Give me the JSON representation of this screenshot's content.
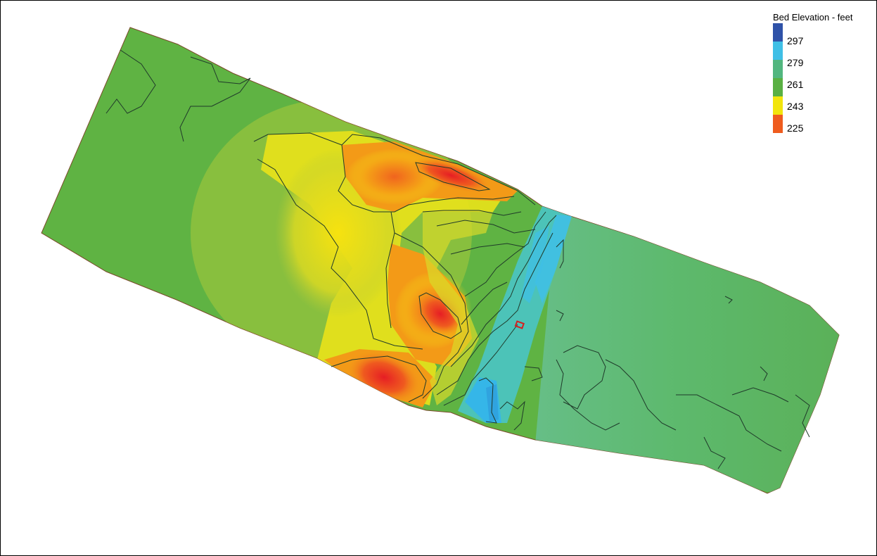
{
  "legend": {
    "title": "Bed Elevation - feet",
    "entries": [
      {
        "label": "",
        "color": "#2f52a8"
      },
      {
        "label": "297",
        "color": "#3fbfe6"
      },
      {
        "label": "279",
        "color": "#52b67f"
      },
      {
        "label": "261",
        "color": "#59b043"
      },
      {
        "label": "243",
        "color": "#f2e50c"
      },
      {
        "label": "225",
        "color": "#ef5c1e"
      }
    ],
    "bottom_color": "#e8222b"
  },
  "map": {
    "river_fill": "#5fb343",
    "contour_color": "#1f3a2a",
    "marker_color": "#d61f1f"
  }
}
